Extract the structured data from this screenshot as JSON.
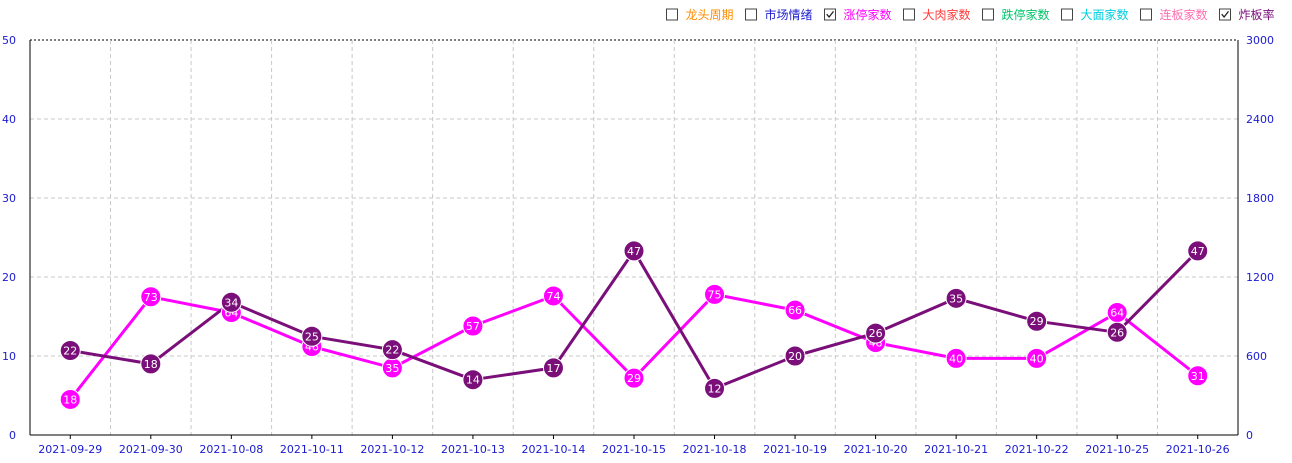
{
  "legend": [
    {
      "label": "龙头周期",
      "color": "#ff8c00",
      "checked": false
    },
    {
      "label": "市场情绪",
      "color": "#1a1ad0",
      "checked": false
    },
    {
      "label": "涨停家数",
      "color": "#ff00ff",
      "checked": true
    },
    {
      "label": "大肉家数",
      "color": "#ff3b3b",
      "checked": false
    },
    {
      "label": "跌停家数",
      "color": "#00c46a",
      "checked": false
    },
    {
      "label": "大面家数",
      "color": "#00cfe0",
      "checked": false
    },
    {
      "label": "连板家数",
      "color": "#ff6fb0",
      "checked": false
    },
    {
      "label": "炸板率",
      "color": "#7a0f7a",
      "checked": true
    }
  ],
  "chart_data": {
    "type": "line",
    "categories": [
      "2021-09-29",
      "2021-09-30",
      "2021-10-08",
      "2021-10-11",
      "2021-10-12",
      "2021-10-13",
      "2021-10-14",
      "2021-10-15",
      "2021-10-18",
      "2021-10-19",
      "2021-10-20",
      "2021-10-21",
      "2021-10-22",
      "2021-10-25",
      "2021-10-26"
    ],
    "y_left": {
      "min": 0,
      "max": 50,
      "ticks": [
        0,
        10,
        20,
        30,
        40,
        50
      ]
    },
    "y_right": {
      "min": 0,
      "max": 3000,
      "ticks": [
        0,
        600,
        1200,
        1800,
        2400,
        3000
      ]
    },
    "grid": true,
    "series": [
      {
        "name": "涨停家数",
        "color": "#ff00ff",
        "axis": "left",
        "y": [
          4.5,
          17.5,
          15.5,
          11.2,
          8.5,
          13.8,
          17.6,
          7.2,
          17.8,
          15.8,
          11.7,
          9.7,
          9.7,
          15.5,
          7.5
        ],
        "labels": [
          "18",
          "73",
          "64",
          "46",
          "35",
          "57",
          "74",
          "29",
          "75",
          "66",
          "48",
          "40",
          "40",
          "64",
          "31"
        ]
      },
      {
        "name": "炸板率",
        "color": "#7a0f7a",
        "axis": "left",
        "y": [
          10.7,
          9.0,
          16.8,
          12.5,
          10.8,
          7.0,
          8.5,
          23.3,
          5.9,
          10.0,
          12.9,
          17.3,
          14.4,
          13.0,
          23.3
        ],
        "labels": [
          "22",
          "18",
          "34",
          "25",
          "22",
          "14",
          "17",
          "47",
          "12",
          "20",
          "26",
          "35",
          "29",
          "26",
          "47"
        ]
      }
    ]
  }
}
